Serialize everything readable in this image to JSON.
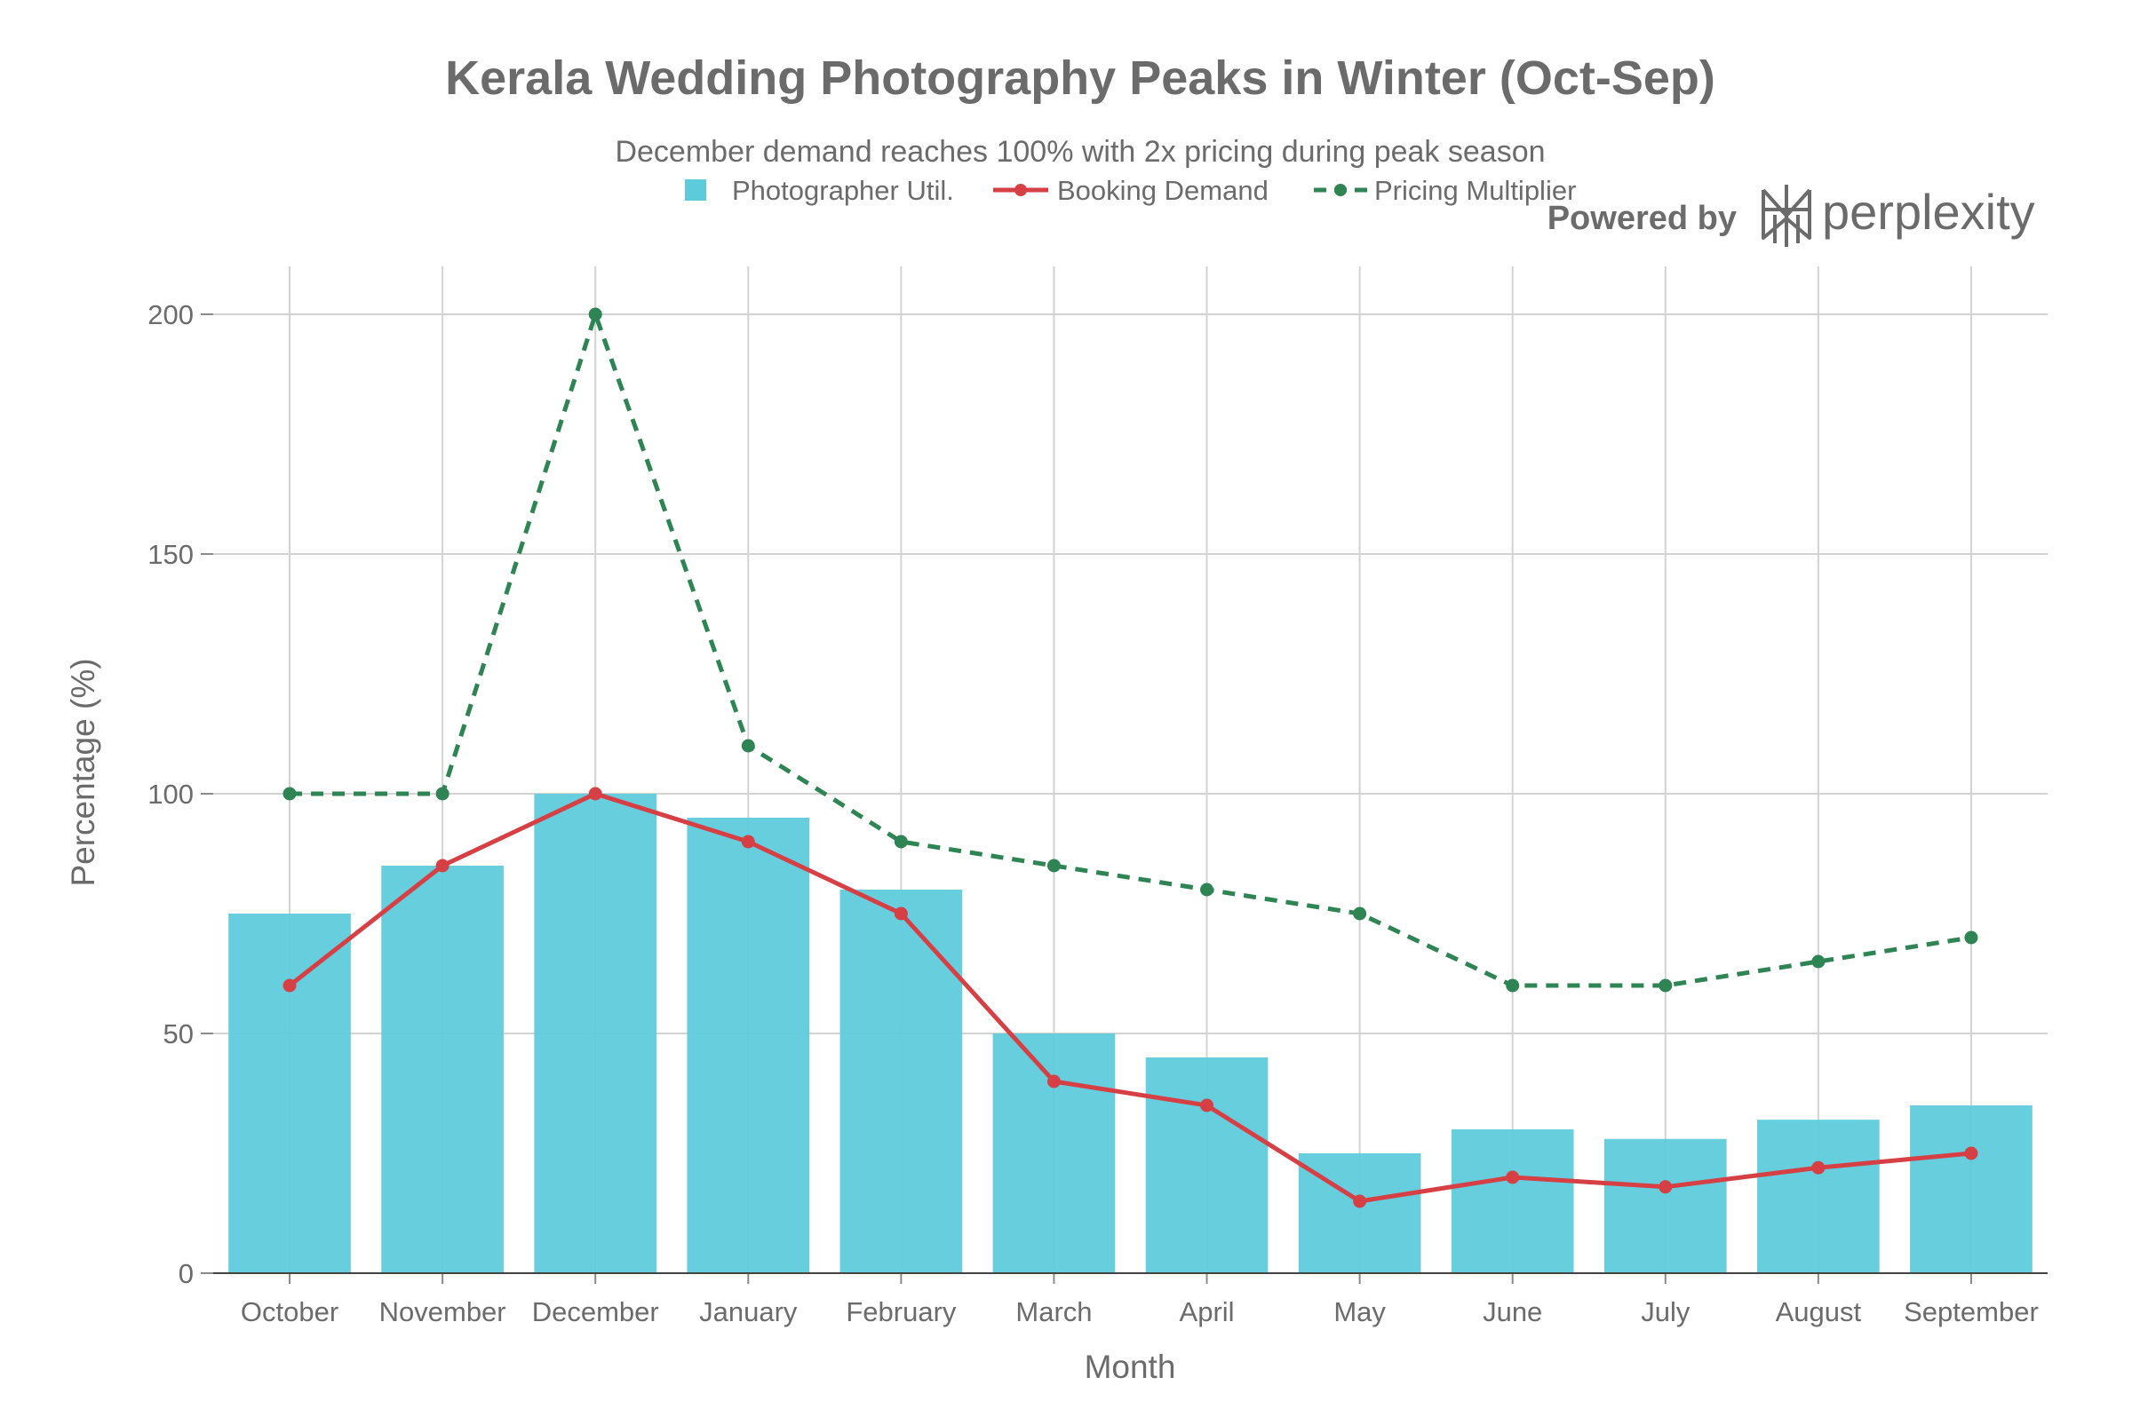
{
  "chart_data": {
    "type": "bar",
    "title": "Kerala Wedding Photography Peaks in Winter (Oct-Sep)",
    "subtitle": "December demand reaches 100% with 2x pricing during peak season",
    "xlabel": "Month",
    "ylabel": "Percentage (%)",
    "ylim": [
      0,
      210
    ],
    "yticks": [
      0,
      50,
      100,
      150,
      200
    ],
    "grid": true,
    "legend_position": "top-center",
    "categories": [
      "October",
      "November",
      "December",
      "January",
      "February",
      "March",
      "April",
      "May",
      "June",
      "July",
      "August",
      "September"
    ],
    "series": [
      {
        "name": "Photographer Util.",
        "kind": "bar",
        "color": "#5ECBDB",
        "values": [
          75,
          85,
          100,
          95,
          80,
          50,
          45,
          25,
          30,
          28,
          32,
          35
        ]
      },
      {
        "name": "Booking Demand",
        "kind": "line",
        "style": "solid",
        "color": "#D64045",
        "values": [
          60,
          85,
          100,
          90,
          75,
          40,
          35,
          15,
          20,
          18,
          22,
          25
        ]
      },
      {
        "name": "Pricing Multiplier",
        "kind": "line",
        "style": "dashed",
        "color": "#2E8553",
        "values": [
          100,
          100,
          200,
          110,
          90,
          85,
          80,
          75,
          60,
          60,
          65,
          70
        ]
      }
    ]
  },
  "branding": {
    "prefix": "Powered by",
    "name": "perplexity",
    "icon": "perplexity-logo-icon"
  }
}
